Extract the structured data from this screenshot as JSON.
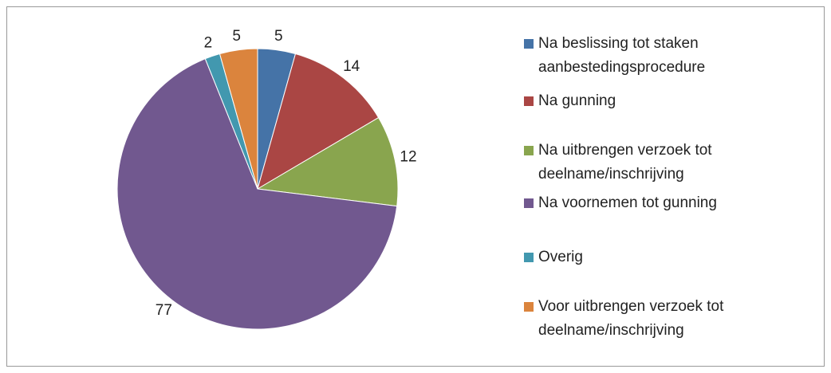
{
  "chart_data": {
    "type": "pie",
    "categories": [
      "Na beslissing tot staken aanbestedingsprocedure",
      "Na gunning",
      "Na uitbrengen verzoek tot deelname/inschrijving",
      "Na voornemen tot gunning",
      "Overig",
      "Voor uitbrengen verzoek tot deelname/inschrijving"
    ],
    "values": [
      5,
      14,
      12,
      77,
      2,
      5
    ],
    "colors": [
      "#4573a7",
      "#aa4644",
      "#89a54e",
      "#71588f",
      "#4298af",
      "#db843d"
    ],
    "legend": "right"
  }
}
